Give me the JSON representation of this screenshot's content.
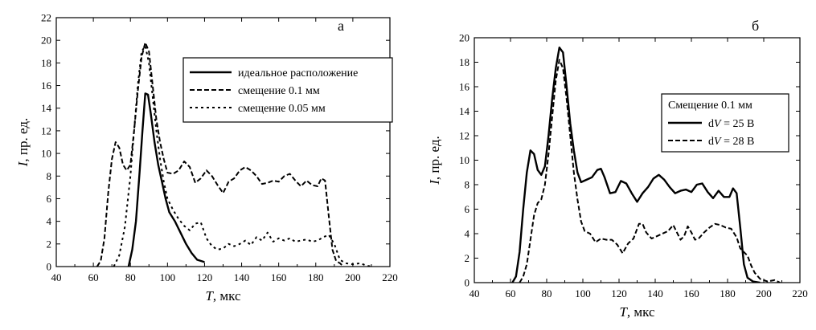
{
  "chart_data": [
    {
      "type": "line",
      "panel_label": "а",
      "xlabel": {
        "var": "T",
        "unit": "мкс"
      },
      "ylabel": {
        "var": "I",
        "unit": "пр. ед."
      },
      "xlim": [
        40,
        220
      ],
      "ylim": [
        0,
        22
      ],
      "xticks": [
        40,
        60,
        80,
        100,
        120,
        140,
        160,
        180,
        200,
        220
      ],
      "yticks": [
        0,
        2,
        4,
        6,
        8,
        10,
        12,
        14,
        16,
        18,
        20,
        22
      ],
      "legend_position": "top-right",
      "series": [
        {
          "name": "идеальное расположение",
          "style": "solid",
          "points": [
            [
              79,
              0
            ],
            [
              81,
              1.5
            ],
            [
              83,
              4
            ],
            [
              85,
              8.5
            ],
            [
              86.5,
              12
            ],
            [
              88,
              15.3
            ],
            [
              89.5,
              15.2
            ],
            [
              91,
              13.5
            ],
            [
              93,
              11
            ],
            [
              95,
              9
            ],
            [
              97,
              7.5
            ],
            [
              99,
              6
            ],
            [
              101,
              4.8
            ],
            [
              104,
              4
            ],
            [
              107,
              3
            ],
            [
              110,
              2
            ],
            [
              113,
              1.2
            ],
            [
              116,
              0.6
            ],
            [
              120,
              0.4
            ]
          ]
        },
        {
          "name": "смещение 0.1 мм",
          "style": "dashed",
          "points": [
            [
              62,
              0
            ],
            [
              64,
              0.5
            ],
            [
              66,
              2.5
            ],
            [
              68,
              6.5
            ],
            [
              70,
              9.5
            ],
            [
              72,
              11
            ],
            [
              74,
              10.5
            ],
            [
              76,
              9
            ],
            [
              78,
              8.5
            ],
            [
              80,
              9
            ],
            [
              82,
              12
            ],
            [
              84,
              15.5
            ],
            [
              86,
              18.5
            ],
            [
              88,
              19.8
            ],
            [
              90,
              19
            ],
            [
              92,
              16
            ],
            [
              94,
              13
            ],
            [
              96,
              11
            ],
            [
              98,
              9.5
            ],
            [
              100,
              8.3
            ],
            [
              103,
              8.2
            ],
            [
              106,
              8.5
            ],
            [
              109,
              9.3
            ],
            [
              112,
              8.8
            ],
            [
              115,
              7.4
            ],
            [
              118,
              7.8
            ],
            [
              121,
              8.5
            ],
            [
              124,
              8
            ],
            [
              127,
              7.2
            ],
            [
              130,
              6.5
            ],
            [
              133,
              7.5
            ],
            [
              136,
              7.8
            ],
            [
              139,
              8.5
            ],
            [
              142,
              8.8
            ],
            [
              145,
              8.5
            ],
            [
              148,
              8
            ],
            [
              151,
              7.3
            ],
            [
              154,
              7.4
            ],
            [
              157,
              7.6
            ],
            [
              160,
              7.5
            ],
            [
              163,
              8
            ],
            [
              166,
              8.2
            ],
            [
              169,
              7.6
            ],
            [
              172,
              7.1
            ],
            [
              175,
              7.6
            ],
            [
              178,
              7.2
            ],
            [
              181,
              7.1
            ],
            [
              183,
              7.8
            ],
            [
              185,
              7.6
            ],
            [
              187,
              4.5
            ],
            [
              189,
              1.5
            ],
            [
              191,
              0.5
            ],
            [
              193,
              0.3
            ],
            [
              195,
              0
            ]
          ]
        },
        {
          "name": "смещение 0.05 мм",
          "style": "dotted",
          "points": [
            [
              71,
              0
            ],
            [
              74,
              1
            ],
            [
              77,
              3.5
            ],
            [
              80,
              8
            ],
            [
              82,
              12
            ],
            [
              84,
              16
            ],
            [
              86,
              19
            ],
            [
              88,
              19.5
            ],
            [
              90,
              18
            ],
            [
              92,
              15
            ],
            [
              94,
              12
            ],
            [
              96,
              9.5
            ],
            [
              98,
              7.5
            ],
            [
              100,
              6
            ],
            [
              103,
              5
            ],
            [
              106,
              4.2
            ],
            [
              109,
              3.6
            ],
            [
              112,
              3.2
            ],
            [
              115,
              3.8
            ],
            [
              118,
              3.9
            ],
            [
              121,
              2.5
            ],
            [
              124,
              1.8
            ],
            [
              127,
              1.5
            ],
            [
              130,
              1.6
            ],
            [
              133,
              2
            ],
            [
              136,
              1.8
            ],
            [
              139,
              2
            ],
            [
              142,
              2.3
            ],
            [
              145,
              1.9
            ],
            [
              148,
              2.6
            ],
            [
              151,
              2.3
            ],
            [
              154,
              3
            ],
            [
              157,
              2.2
            ],
            [
              160,
              2.5
            ],
            [
              163,
              2.3
            ],
            [
              166,
              2.5
            ],
            [
              169,
              2.2
            ],
            [
              172,
              2.3
            ],
            [
              175,
              2.4
            ],
            [
              178,
              2.2
            ],
            [
              181,
              2.3
            ],
            [
              184,
              2.6
            ],
            [
              187,
              2.8
            ],
            [
              190,
              2
            ],
            [
              193,
              0.6
            ],
            [
              196,
              0.3
            ],
            [
              200,
              0.2
            ],
            [
              204,
              0.3
            ],
            [
              207,
              0.1
            ],
            [
              210,
              0
            ]
          ]
        }
      ]
    },
    {
      "type": "line",
      "panel_label": "б",
      "xlabel": {
        "var": "T",
        "unit": "мкс"
      },
      "ylabel": {
        "var": "I",
        "unit": "пр. ед."
      },
      "xlim": [
        40,
        220
      ],
      "ylim": [
        0,
        20
      ],
      "xticks": [
        40,
        60,
        80,
        100,
        120,
        140,
        160,
        180,
        200,
        220
      ],
      "yticks": [
        0,
        2,
        4,
        6,
        8,
        10,
        12,
        14,
        16,
        18,
        20
      ],
      "legend_position": "center-right",
      "legend_title": "Смещение 0.1 мм",
      "series": [
        {
          "name": "dV = 25 B",
          "name_parts": {
            "pre": "d",
            "var": "V",
            "post": " = 25 B"
          },
          "style": "solid",
          "points": [
            [
              61,
              0
            ],
            [
              63,
              0.5
            ],
            [
              65,
              2.5
            ],
            [
              67,
              6
            ],
            [
              69,
              9
            ],
            [
              71,
              10.8
            ],
            [
              73,
              10.5
            ],
            [
              75,
              9.2
            ],
            [
              77,
              8.8
            ],
            [
              79,
              9.5
            ],
            [
              81,
              12
            ],
            [
              83,
              15
            ],
            [
              85,
              17.5
            ],
            [
              87,
              19.2
            ],
            [
              89,
              18.8
            ],
            [
              91,
              16
            ],
            [
              93,
              13
            ],
            [
              95,
              10.8
            ],
            [
              97,
              9
            ],
            [
              99,
              8.2
            ],
            [
              102,
              8.4
            ],
            [
              105,
              8.6
            ],
            [
              108,
              9.2
            ],
            [
              110,
              9.3
            ],
            [
              112,
              8.6
            ],
            [
              115,
              7.3
            ],
            [
              118,
              7.4
            ],
            [
              121,
              8.3
            ],
            [
              124,
              8.1
            ],
            [
              127,
              7.3
            ],
            [
              130,
              6.6
            ],
            [
              133,
              7.3
            ],
            [
              136,
              7.8
            ],
            [
              139,
              8.5
            ],
            [
              142,
              8.8
            ],
            [
              145,
              8.4
            ],
            [
              148,
              7.8
            ],
            [
              151,
              7.3
            ],
            [
              154,
              7.5
            ],
            [
              157,
              7.6
            ],
            [
              160,
              7.4
            ],
            [
              163,
              8
            ],
            [
              166,
              8.1
            ],
            [
              169,
              7.4
            ],
            [
              172,
              6.9
            ],
            [
              175,
              7.5
            ],
            [
              178,
              7
            ],
            [
              181,
              7
            ],
            [
              183,
              7.7
            ],
            [
              185,
              7.3
            ],
            [
              187,
              4.5
            ],
            [
              189,
              1.5
            ],
            [
              191,
              0.4
            ],
            [
              194,
              0.1
            ],
            [
              198,
              0
            ]
          ]
        },
        {
          "name": "dV = 28 B",
          "name_parts": {
            "pre": "d",
            "var": "V",
            "post": " = 28 B"
          },
          "style": "dashed",
          "points": [
            [
              65,
              0
            ],
            [
              67,
              0.5
            ],
            [
              69,
              1.5
            ],
            [
              71,
              3.5
            ],
            [
              73,
              5.5
            ],
            [
              75,
              6.5
            ],
            [
              77,
              6.8
            ],
            [
              79,
              8
            ],
            [
              81,
              10.5
            ],
            [
              83,
              13.5
            ],
            [
              85,
              16.5
            ],
            [
              87,
              18.2
            ],
            [
              89,
              17.5
            ],
            [
              91,
              15
            ],
            [
              93,
              12
            ],
            [
              95,
              9
            ],
            [
              97,
              6.8
            ],
            [
              99,
              5
            ],
            [
              101,
              4.2
            ],
            [
              104,
              4
            ],
            [
              107,
              3.3
            ],
            [
              110,
              3.6
            ],
            [
              113,
              3.5
            ],
            [
              116,
              3.5
            ],
            [
              119,
              3.1
            ],
            [
              122,
              2.4
            ],
            [
              125,
              3.2
            ],
            [
              128,
              3.6
            ],
            [
              131,
              4.8
            ],
            [
              133,
              4.8
            ],
            [
              135,
              4.1
            ],
            [
              138,
              3.6
            ],
            [
              141,
              3.8
            ],
            [
              144,
              4
            ],
            [
              147,
              4.2
            ],
            [
              150,
              4.7
            ],
            [
              152,
              4.1
            ],
            [
              154,
              3.5
            ],
            [
              156,
              3.8
            ],
            [
              158,
              4.6
            ],
            [
              160,
              4.1
            ],
            [
              162,
              3.5
            ],
            [
              164,
              3.6
            ],
            [
              167,
              4.1
            ],
            [
              170,
              4.5
            ],
            [
              173,
              4.8
            ],
            [
              176,
              4.7
            ],
            [
              179,
              4.5
            ],
            [
              182,
              4.4
            ],
            [
              185,
              3.7
            ],
            [
              187,
              2.8
            ],
            [
              189,
              2.5
            ],
            [
              191,
              2.2
            ],
            [
              193,
              1.4
            ],
            [
              195,
              0.8
            ],
            [
              198,
              0.3
            ],
            [
              202,
              0.1
            ],
            [
              206,
              0.2
            ],
            [
              209,
              0
            ]
          ]
        }
      ]
    }
  ]
}
